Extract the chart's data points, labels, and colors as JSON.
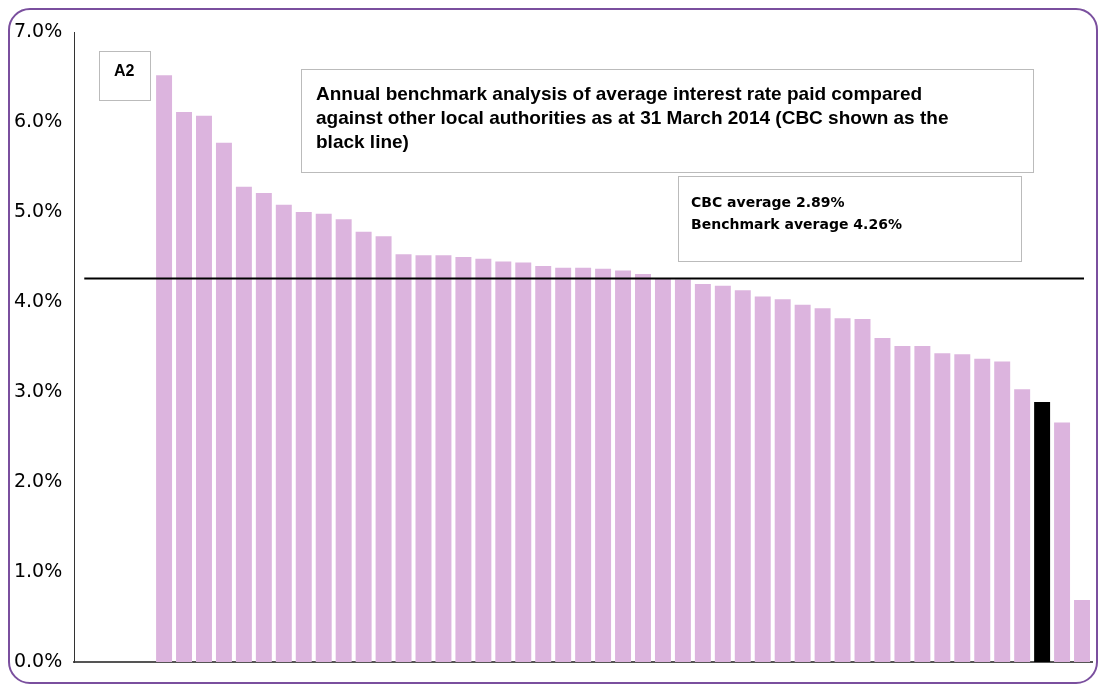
{
  "chart_data": {
    "type": "bar",
    "title": "Annual benchmark analysis of average interest rate paid compared against other local authorities as at 31 March 2014 (CBC shown as the black line)",
    "annotations": [
      "A2",
      "CBC average 2.89%",
      "Benchmark average 4.26%"
    ],
    "categories": [
      null,
      null,
      null,
      null,
      null,
      null,
      null,
      null,
      null,
      null,
      null,
      null,
      null,
      null,
      null,
      null,
      null,
      null,
      null,
      null,
      null,
      null,
      null,
      null,
      null,
      null,
      null,
      null,
      null,
      null,
      null,
      null,
      null,
      null,
      null,
      null,
      null,
      null,
      null,
      null,
      null,
      null,
      null,
      null,
      null,
      null,
      null,
      null,
      null,
      null,
      null
    ],
    "values": [
      null,
      null,
      null,
      null,
      6.52,
      6.11,
      6.07,
      5.77,
      5.28,
      5.21,
      5.08,
      5.0,
      4.98,
      4.92,
      4.78,
      4.73,
      4.53,
      4.52,
      4.52,
      4.5,
      4.48,
      4.45,
      4.44,
      4.4,
      4.38,
      4.38,
      4.37,
      4.35,
      4.31,
      4.26,
      4.25,
      4.2,
      4.18,
      4.13,
      4.06,
      4.03,
      3.97,
      3.93,
      3.82,
      3.81,
      3.6,
      3.51,
      3.51,
      3.43,
      3.42,
      3.37,
      3.34,
      3.03,
      2.89,
      2.66,
      0.69
    ],
    "colors": [
      "#dcb4de",
      "#dcb4de",
      "#dcb4de",
      "#dcb4de",
      "#dcb4de",
      "#dcb4de",
      "#dcb4de",
      "#dcb4de",
      "#dcb4de",
      "#dcb4de",
      "#dcb4de",
      "#dcb4de",
      "#dcb4de",
      "#dcb4de",
      "#dcb4de",
      "#dcb4de",
      "#dcb4de",
      "#dcb4de",
      "#dcb4de",
      "#dcb4de",
      "#dcb4de",
      "#dcb4de",
      "#dcb4de",
      "#dcb4de",
      "#dcb4de",
      "#dcb4de",
      "#dcb4de",
      "#dcb4de",
      "#dcb4de",
      "#dcb4de",
      "#dcb4de",
      "#dcb4de",
      "#dcb4de",
      "#dcb4de",
      "#dcb4de",
      "#dcb4de",
      "#dcb4de",
      "#dcb4de",
      "#dcb4de",
      "#dcb4de",
      "#dcb4de",
      "#dcb4de",
      "#dcb4de",
      "#dcb4de",
      "#dcb4de",
      "#dcb4de",
      "#dcb4de",
      "#dcb4de",
      "#000000",
      "#dcb4de",
      "#dcb4de"
    ],
    "ylim": [
      0,
      7
    ],
    "yticks": [
      {
        "value": 0,
        "label": "0.0%"
      },
      {
        "value": 1,
        "label": "1.0%"
      },
      {
        "value": 2,
        "label": "2.0%"
      },
      {
        "value": 3,
        "label": "3.0%"
      },
      {
        "value": 4,
        "label": "4.0%"
      },
      {
        "value": 5,
        "label": "5.0%"
      },
      {
        "value": 6,
        "label": "6.0%"
      },
      {
        "value": 7,
        "label": "7.0%"
      }
    ],
    "ref_lines": [
      {
        "axis": "y",
        "value": 4.26,
        "color": "#000000"
      }
    ],
    "grid": false,
    "legend": false,
    "tick_labels": "y"
  }
}
